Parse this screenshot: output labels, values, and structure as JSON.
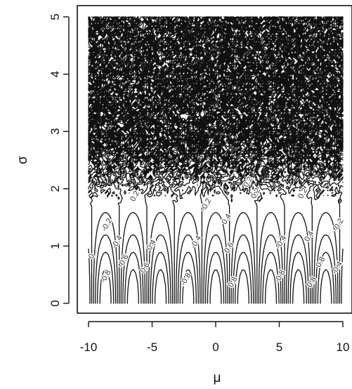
{
  "chart_data": {
    "type": "contour",
    "title": "",
    "xlabel": "μ",
    "ylabel": "σ",
    "xlim": [
      -10,
      10
    ],
    "ylim": [
      0,
      5
    ],
    "x_ticks": [
      {
        "value": -10,
        "label": "-10"
      },
      {
        "value": -5,
        "label": "-5"
      },
      {
        "value": 0,
        "label": "0"
      },
      {
        "value": 5,
        "label": "5"
      },
      {
        "value": 10,
        "label": "10"
      }
    ],
    "y_ticks": [
      {
        "value": 0,
        "label": "0"
      },
      {
        "value": 1,
        "label": "1"
      },
      {
        "value": 2,
        "label": "2"
      },
      {
        "value": 3,
        "label": "3"
      },
      {
        "value": 4,
        "label": "4"
      },
      {
        "value": 5,
        "label": "5"
      }
    ],
    "contour_levels": [
      -0.8,
      -0.6,
      -0.4,
      -0.2,
      0,
      0.2,
      0.4,
      0.6,
      0.8
    ],
    "contour_labels": [
      {
        "text": "0",
        "x": -9.6,
        "y": 0.8
      },
      {
        "text": "-0.8",
        "x": -8.5,
        "y": 0.45
      },
      {
        "text": "-0.2",
        "x": -8.4,
        "y": 1.35
      },
      {
        "text": "-0.4",
        "x": -7.6,
        "y": 1.05
      },
      {
        "text": "-0.6",
        "x": -7.1,
        "y": 0.72
      },
      {
        "text": "0.2",
        "x": -6.2,
        "y": 1.85
      },
      {
        "text": "0.4",
        "x": -4.9,
        "y": 1.0
      },
      {
        "text": "0.6",
        "x": -5.4,
        "y": 0.6
      },
      {
        "text": "-0.8",
        "x": -2.2,
        "y": 0.4
      },
      {
        "text": "-0.4",
        "x": -1.4,
        "y": 1.05
      },
      {
        "text": "-0.2",
        "x": -0.6,
        "y": 1.7
      },
      {
        "text": "0.4",
        "x": 1.0,
        "y": 1.45
      },
      {
        "text": "0.6",
        "x": 1.2,
        "y": 0.95
      },
      {
        "text": "0.8",
        "x": 1.5,
        "y": 0.35
      },
      {
        "text": "0.2",
        "x": 3.3,
        "y": 1.9
      },
      {
        "text": "0.2",
        "x": 2.7,
        "y": 2.1
      },
      {
        "text": "-0.4",
        "x": 5.3,
        "y": 1.05
      },
      {
        "text": "-0.8",
        "x": 5.2,
        "y": 0.45
      },
      {
        "text": "0.2",
        "x": 7.0,
        "y": 1.9
      },
      {
        "text": "0.4",
        "x": 7.5,
        "y": 1.15
      },
      {
        "text": "0.8",
        "x": 7.7,
        "y": 0.35
      },
      {
        "text": "0.8",
        "x": 8.4,
        "y": 0.7
      },
      {
        "text": "-0.2",
        "x": 9.8,
        "y": 1.35
      },
      {
        "text": "-0.4",
        "x": 9.7,
        "y": 0.6
      }
    ]
  }
}
